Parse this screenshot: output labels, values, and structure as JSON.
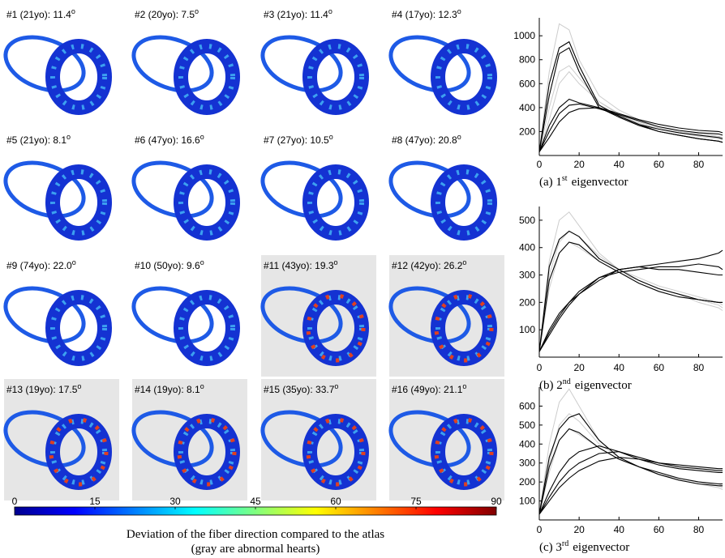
{
  "panels": [
    {
      "label": "#1 (21yo): 11.4",
      "unit": "o",
      "abnormal": false
    },
    {
      "label": "#2 (20yo): 7.5",
      "unit": "o",
      "abnormal": false
    },
    {
      "label": "#3 (21yo): 11.4",
      "unit": "o",
      "abnormal": false
    },
    {
      "label": "#4 (17yo): 12.3",
      "unit": "o",
      "abnormal": false
    },
    {
      "label": "#5 (21yo): 8.1",
      "unit": "o",
      "abnormal": false
    },
    {
      "label": "#6 (47yo): 16.6",
      "unit": "o",
      "abnormal": false
    },
    {
      "label": "#7 (27yo): 10.5",
      "unit": "o",
      "abnormal": false
    },
    {
      "label": "#8 (47yo): 20.8",
      "unit": "o",
      "abnormal": false
    },
    {
      "label": "#9 (74yo): 22.0",
      "unit": "o",
      "abnormal": false
    },
    {
      "label": "#10 (50yo): 9.6",
      "unit": "o",
      "abnormal": false
    },
    {
      "label": "#11 (43yo): 19.3",
      "unit": "o",
      "abnormal": true
    },
    {
      "label": "#12 (42yo): 26.2",
      "unit": "o",
      "abnormal": true
    },
    {
      "label": "#13 (19yo): 17.5",
      "unit": "o",
      "abnormal": true
    },
    {
      "label": "#14 (19yo): 8.1",
      "unit": "o",
      "abnormal": true
    },
    {
      "label": "#15 (35yo): 33.7",
      "unit": "o",
      "abnormal": true
    },
    {
      "label": "#16 (49yo): 21.1",
      "unit": "o",
      "abnormal": true
    }
  ],
  "colorbar": {
    "ticks": [
      0,
      15,
      30,
      45,
      60,
      75,
      90
    ]
  },
  "caption": [
    "Deviation of the fiber direction compared to the atlas",
    "(gray are abnormal hearts)"
  ],
  "chart_data": [
    {
      "type": "line",
      "caption": {
        "prefix": "(a) 1",
        "sup": "st",
        "suffix": "eigenvector"
      },
      "x": [
        0,
        5,
        10,
        15,
        20,
        30,
        40,
        50,
        60,
        70,
        80,
        90,
        92
      ],
      "xlim": [
        0,
        92
      ],
      "xticks": [
        0,
        20,
        40,
        60,
        80
      ],
      "ylim": [
        0,
        1150
      ],
      "yticks": [
        200,
        400,
        600,
        800,
        1000
      ],
      "series": [
        {
          "color": "#cccccc",
          "values": [
            30,
            700,
            1100,
            1050,
            800,
            500,
            380,
            300,
            240,
            200,
            180,
            160,
            150
          ]
        },
        {
          "color": "#cccccc",
          "values": [
            30,
            300,
            600,
            700,
            600,
            450,
            350,
            280,
            230,
            200,
            180,
            160,
            150
          ]
        },
        {
          "color": "#cccccc",
          "values": [
            30,
            400,
            700,
            750,
            650,
            450,
            340,
            270,
            220,
            190,
            160,
            140,
            130
          ]
        },
        {
          "color": "#000000",
          "values": [
            30,
            600,
            900,
            950,
            750,
            420,
            330,
            260,
            200,
            170,
            140,
            120,
            110
          ]
        },
        {
          "color": "#000000",
          "values": [
            30,
            500,
            850,
            900,
            700,
            400,
            320,
            250,
            200,
            170,
            140,
            120,
            110
          ]
        },
        {
          "color": "#000000",
          "values": [
            30,
            250,
            400,
            470,
            440,
            400,
            330,
            260,
            220,
            190,
            170,
            150,
            140
          ]
        },
        {
          "color": "#000000",
          "values": [
            30,
            200,
            350,
            420,
            430,
            390,
            340,
            290,
            240,
            210,
            190,
            180,
            170
          ]
        },
        {
          "color": "#000000",
          "values": [
            30,
            150,
            280,
            360,
            390,
            400,
            350,
            300,
            260,
            230,
            210,
            200,
            190
          ]
        }
      ]
    },
    {
      "type": "line",
      "caption": {
        "prefix": "(b) 2",
        "sup": "nd",
        "suffix": "eigenvector"
      },
      "x": [
        0,
        5,
        10,
        15,
        20,
        30,
        40,
        50,
        60,
        70,
        80,
        90,
        92
      ],
      "xlim": [
        0,
        92
      ],
      "xticks": [
        0,
        20,
        40,
        60,
        80
      ],
      "ylim": [
        0,
        550
      ],
      "yticks": [
        100,
        200,
        300,
        400,
        500
      ],
      "series": [
        {
          "color": "#cccccc",
          "values": [
            20,
            350,
            500,
            530,
            480,
            380,
            320,
            280,
            250,
            230,
            210,
            190,
            180
          ]
        },
        {
          "color": "#cccccc",
          "values": [
            20,
            300,
            420,
            460,
            440,
            370,
            320,
            290,
            260,
            240,
            220,
            200,
            190
          ]
        },
        {
          "color": "#cccccc",
          "values": [
            20,
            250,
            380,
            420,
            400,
            350,
            310,
            280,
            250,
            230,
            200,
            180,
            170
          ]
        },
        {
          "color": "#000000",
          "values": [
            20,
            330,
            430,
            460,
            440,
            360,
            320,
            280,
            250,
            230,
            210,
            200,
            200
          ]
        },
        {
          "color": "#000000",
          "values": [
            20,
            280,
            380,
            420,
            410,
            350,
            310,
            270,
            240,
            220,
            210,
            200,
            200
          ]
        },
        {
          "color": "#000000",
          "values": [
            20,
            100,
            160,
            200,
            230,
            280,
            320,
            330,
            340,
            350,
            360,
            380,
            390
          ]
        },
        {
          "color": "#000000",
          "values": [
            20,
            80,
            140,
            190,
            230,
            290,
            310,
            320,
            330,
            330,
            340,
            330,
            320
          ]
        },
        {
          "color": "#000000",
          "values": [
            20,
            90,
            150,
            200,
            240,
            290,
            320,
            330,
            320,
            320,
            310,
            300,
            300
          ]
        }
      ]
    },
    {
      "type": "line",
      "caption": {
        "prefix": "(c) 3",
        "sup": "rd",
        "suffix": "eigenvector"
      },
      "x": [
        0,
        5,
        10,
        15,
        20,
        30,
        40,
        50,
        60,
        70,
        80,
        90,
        92
      ],
      "xlim": [
        0,
        92
      ],
      "xticks": [
        0,
        20,
        40,
        60,
        80
      ],
      "ylim": [
        0,
        700
      ],
      "yticks": [
        100,
        200,
        300,
        400,
        500,
        600
      ],
      "series": [
        {
          "color": "#cccccc",
          "values": [
            30,
            400,
            620,
            690,
            600,
            420,
            330,
            280,
            240,
            220,
            200,
            180,
            170
          ]
        },
        {
          "color": "#cccccc",
          "values": [
            30,
            300,
            500,
            560,
            520,
            400,
            330,
            280,
            240,
            210,
            190,
            170,
            160
          ]
        },
        {
          "color": "#cccccc",
          "values": [
            30,
            250,
            420,
            480,
            450,
            380,
            320,
            280,
            250,
            220,
            200,
            190,
            180
          ]
        },
        {
          "color": "#000000",
          "values": [
            30,
            330,
            480,
            540,
            560,
            420,
            330,
            280,
            240,
            210,
            190,
            180,
            180
          ]
        },
        {
          "color": "#000000",
          "values": [
            30,
            280,
            420,
            480,
            460,
            380,
            320,
            280,
            250,
            220,
            200,
            190,
            190
          ]
        },
        {
          "color": "#000000",
          "values": [
            30,
            150,
            250,
            320,
            360,
            390,
            360,
            320,
            290,
            270,
            260,
            250,
            250
          ]
        },
        {
          "color": "#000000",
          "values": [
            30,
            120,
            200,
            260,
            300,
            350,
            360,
            330,
            300,
            280,
            270,
            260,
            260
          ]
        },
        {
          "color": "#000000",
          "values": [
            30,
            100,
            170,
            220,
            260,
            310,
            330,
            320,
            300,
            290,
            280,
            270,
            270
          ]
        }
      ]
    }
  ]
}
